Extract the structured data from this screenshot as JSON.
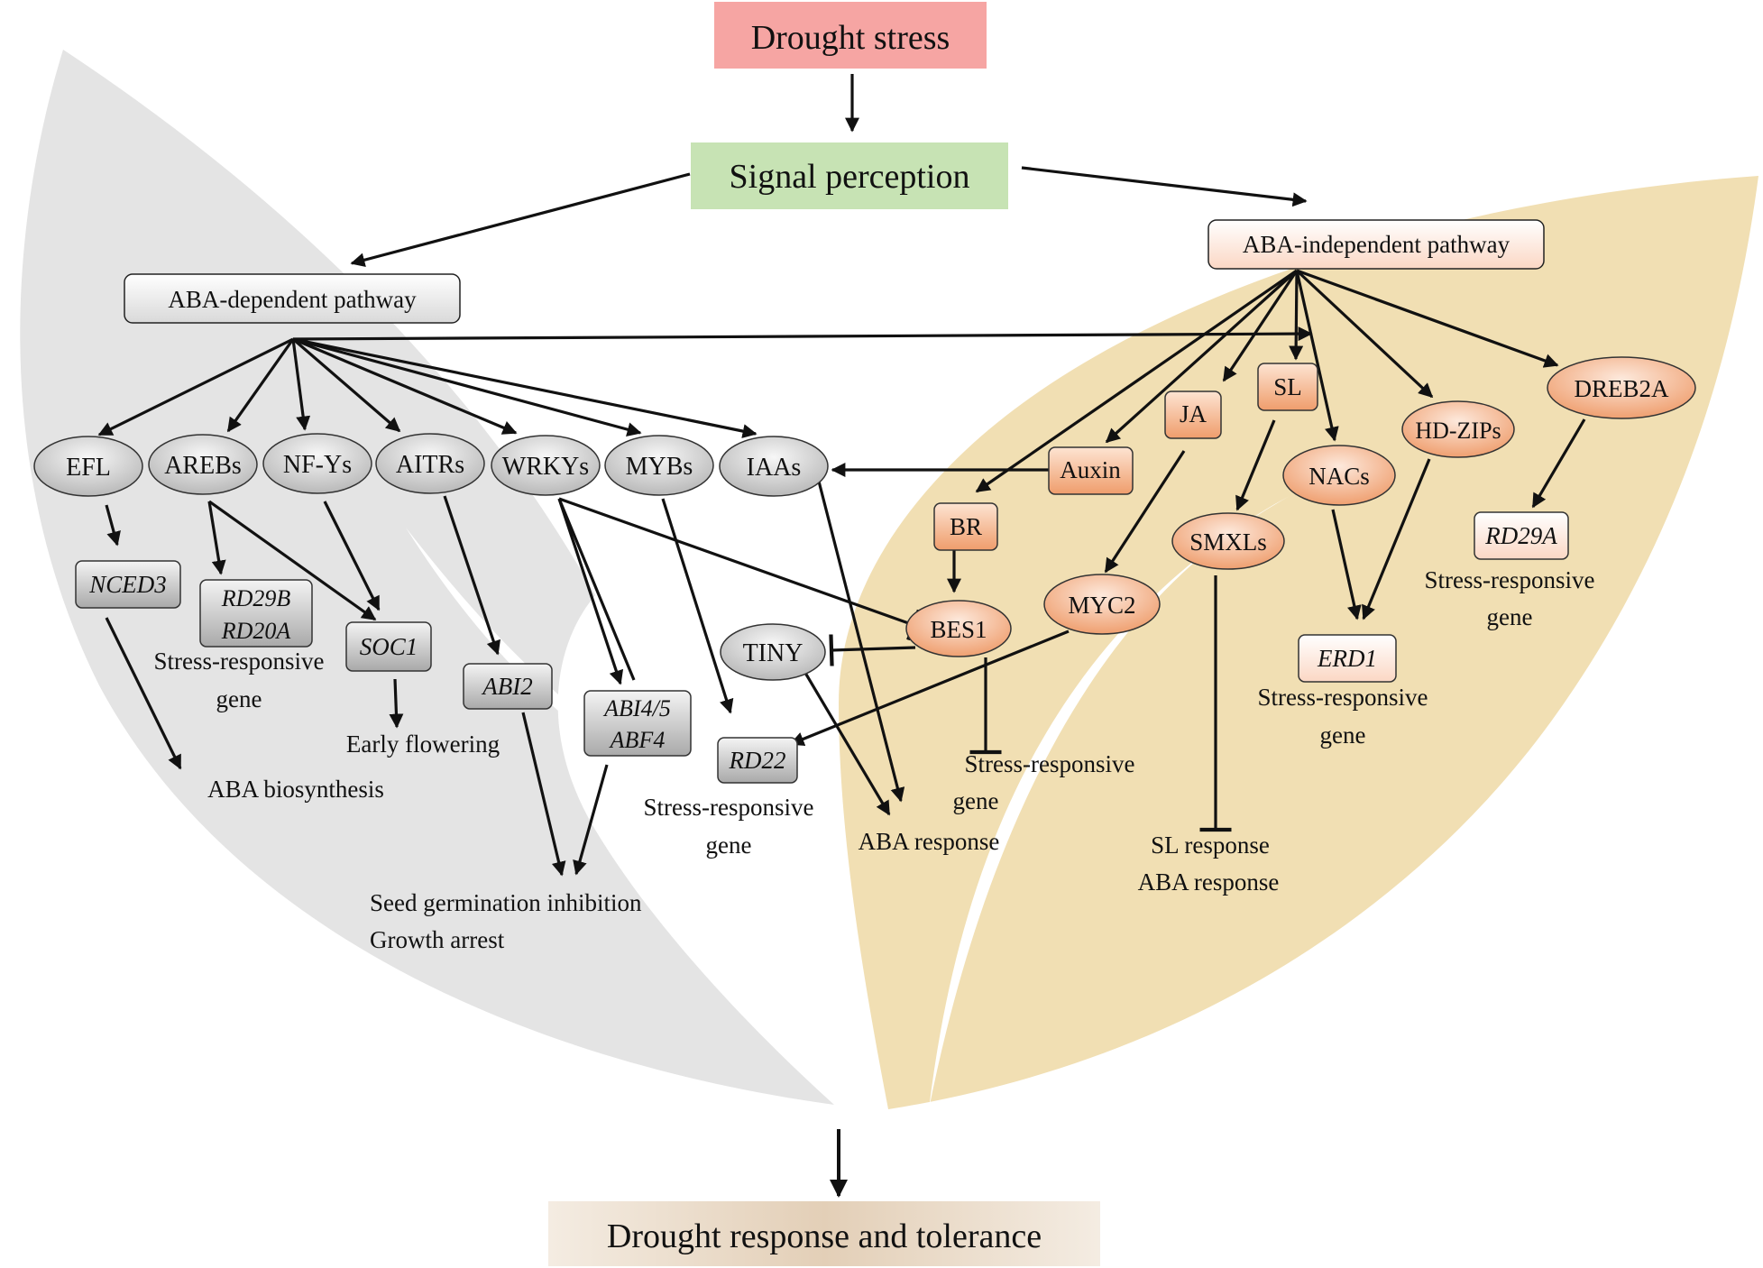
{
  "top": {
    "stress": "Drought stress",
    "perception": "Signal perception",
    "outcome": "Drought response and tolerance"
  },
  "pathways": {
    "dependent": "ABA-dependent  pathway",
    "independent": "ABA-independent  pathway"
  },
  "nodes": {
    "efl": "EFL",
    "arebs": "AREBs",
    "nfys": "NF-Ys",
    "aitrs": "AITRs",
    "wrkys": "WRKYs",
    "mybs": "MYBs",
    "iaas": "IAAs",
    "nced3": "NCED3",
    "rd29b": "RD29B",
    "rd20a": "RD20A",
    "soc1": "SOC1",
    "abi2": "ABI2",
    "abi45": "ABI4/5",
    "abf4": "ABF4",
    "rd22": "RD22",
    "tiny": "TINY",
    "bes1": "BES1",
    "br": "BR",
    "auxin": "Auxin",
    "ja": "JA",
    "myc2": "MYC2",
    "sl": "SL",
    "smxls": "SMXLs",
    "nacs": "NACs",
    "hdzips": "HD-ZIPs",
    "dreb2a": "DREB2A",
    "rd29a": "RD29A",
    "erd1": "ERD1"
  },
  "labels": {
    "srg_line1": "Stress-responsive",
    "srg_line2": "gene",
    "early_flowering": "Early  flowering",
    "aba_biosynthesis": "ABA biosynthesis",
    "seed_germination": "Seed germination  inhibition",
    "growth_arrest": "Growth arrest",
    "aba_response": "ABA response",
    "sl_response": "SL response"
  },
  "colors": {
    "stress_box": "#f6a5a3",
    "perception_box": "#c7e3b4",
    "outcome_box": "#e8d6c1",
    "leaf_left": "#e3e3e3",
    "leaf_right": "#f1dfb3",
    "node_grey": "#cfcfcf",
    "node_orange": "#f2ab80"
  }
}
